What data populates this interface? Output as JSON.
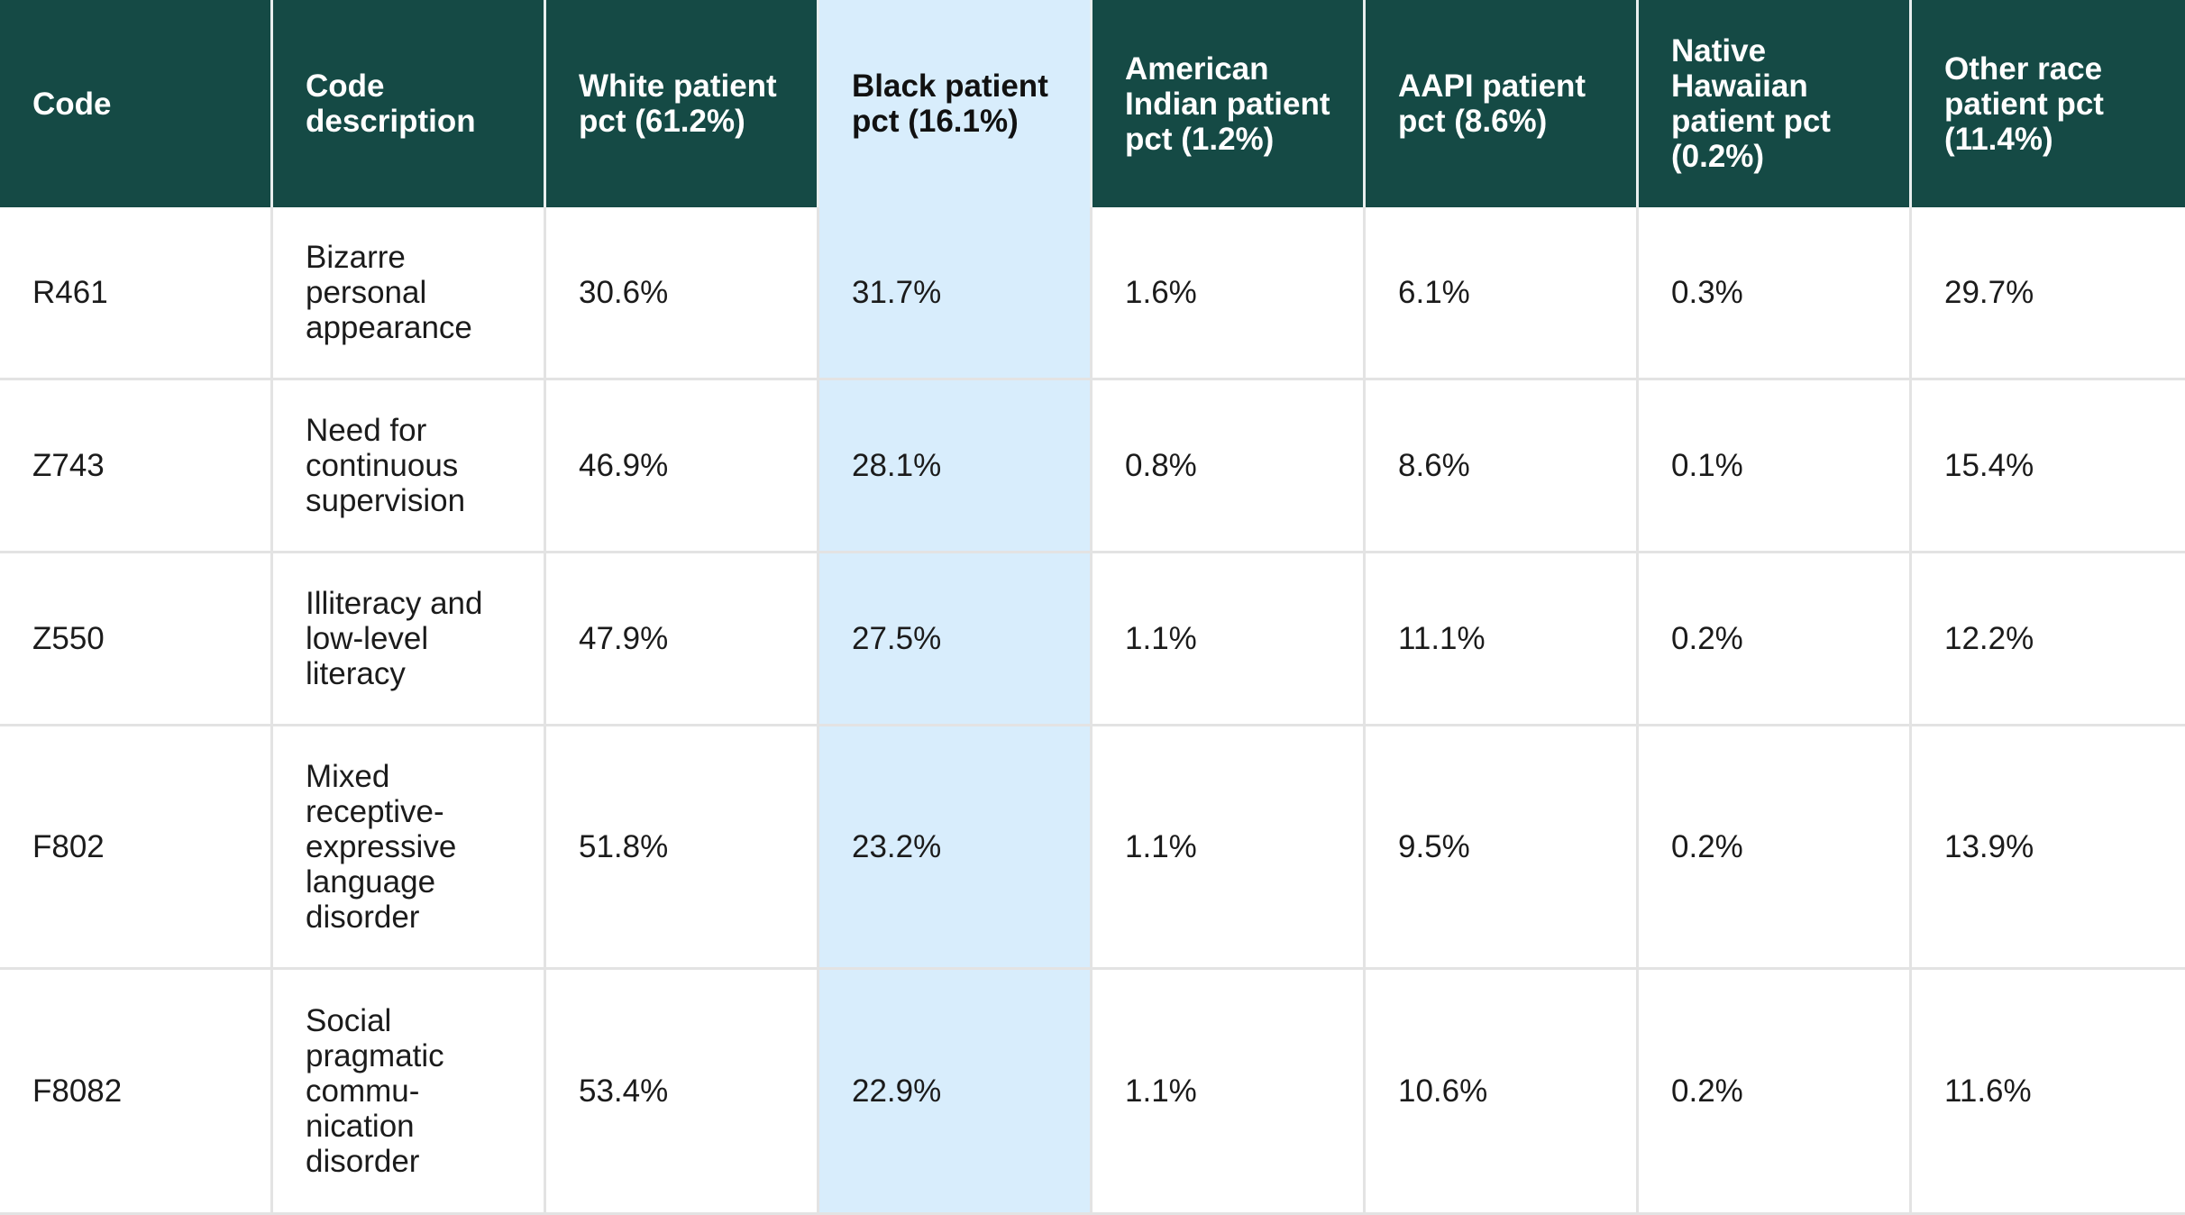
{
  "chart_data": {
    "type": "table",
    "highlight_column_index": 3,
    "colors": {
      "header_background": "#154a45",
      "header_text": "#ffffff",
      "highlight_background": "#d8edfc",
      "grid_line": "#e3e3e3",
      "body_text": "#1b1b1b"
    },
    "columns": [
      "Code",
      "Code description",
      "White patient pct (61.2%)",
      "Black patient pct (16.1%)",
      "American Indian patient pct (1.2%)",
      "AAPI patient pct (8.6%)",
      "Native Hawaiian patient pct (0.2%)",
      "Other race patient pct (11.4%)"
    ],
    "rows": [
      [
        "R461",
        "Bizarre personal appearance",
        "30.6%",
        "31.7%",
        "1.6%",
        "6.1%",
        "0.3%",
        "29.7%"
      ],
      [
        "Z743",
        "Need for continuous supervision",
        "46.9%",
        "28.1%",
        "0.8%",
        "8.6%",
        "0.1%",
        "15.4%"
      ],
      [
        "Z550",
        "Illiteracy and low-level literacy",
        "47.9%",
        "27.5%",
        "1.1%",
        "11.1%",
        "0.2%",
        "12.2%"
      ],
      [
        "F802",
        "Mixed receptive-expressive language disorder",
        "51.8%",
        "23.2%",
        "1.1%",
        "9.5%",
        "0.2%",
        "13.9%"
      ],
      [
        "F8082",
        "Social pragmatic commu-nication disorder",
        "53.4%",
        "22.9%",
        "1.1%",
        "10.6%",
        "0.2%",
        "11.6%"
      ]
    ]
  }
}
